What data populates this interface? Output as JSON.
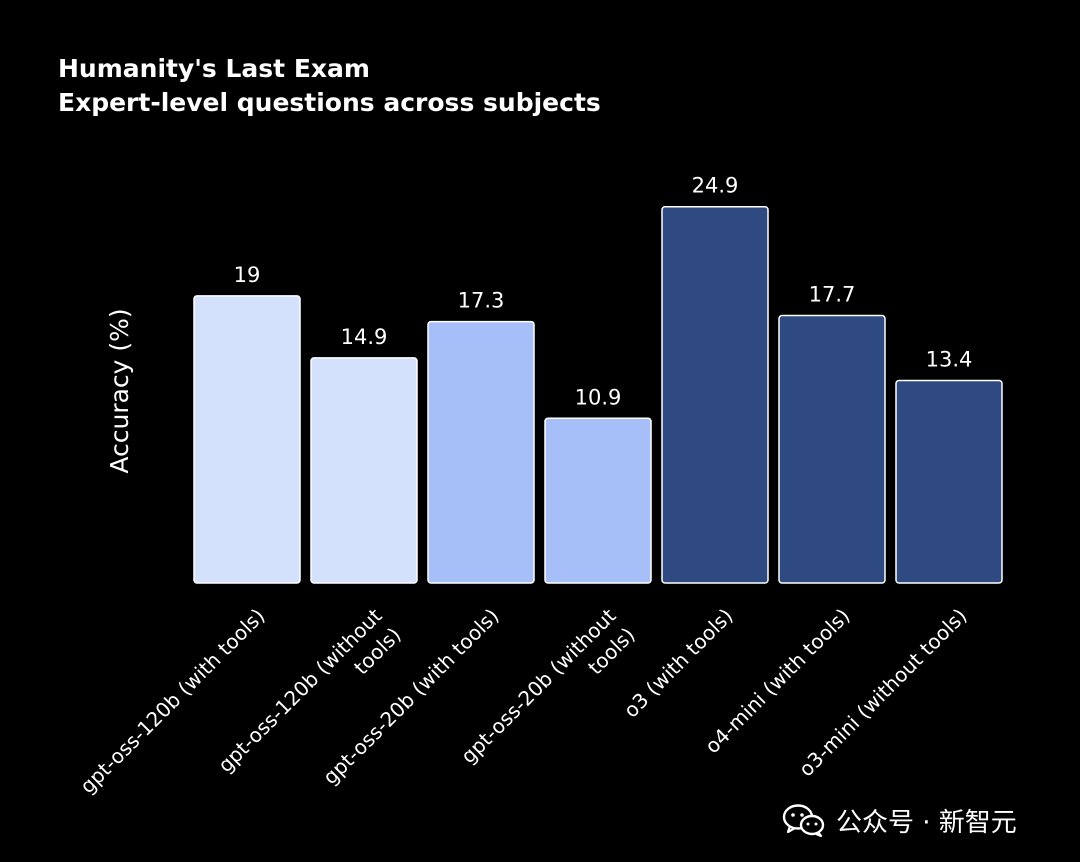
{
  "chart_data": {
    "type": "bar",
    "title": "Humanity's Last Exam",
    "subtitle": "Expert-level questions across subjects",
    "xlabel": "",
    "ylabel": "Accuracy (%)",
    "ylim": [
      0,
      27
    ],
    "grid": false,
    "categories": [
      "gpt-oss-120b (with tools)",
      "gpt-oss-120b (without tools)",
      "gpt-oss-20b (with tools)",
      "gpt-oss-20b (without tools)",
      "o3 (with tools)",
      "o4-mini (with tools)",
      "o3-mini (without tools)"
    ],
    "category_label_lines": [
      [
        "gpt-oss-120b (with tools)"
      ],
      [
        "gpt-oss-120b (without",
        "tools)"
      ],
      [
        "gpt-oss-20b (with tools)"
      ],
      [
        "gpt-oss-20b (without",
        "tools)"
      ],
      [
        "o3 (with tools)"
      ],
      [
        "o4-mini (with tools)"
      ],
      [
        "o3-mini (without tools)"
      ]
    ],
    "values": [
      19,
      14.9,
      17.3,
      10.9,
      24.9,
      17.7,
      13.4
    ],
    "value_labels": [
      "19",
      "14.9",
      "17.3",
      "10.9",
      "24.9",
      "17.7",
      "13.4"
    ],
    "bar_colors": [
      "#d3e1fc",
      "#d3e1fc",
      "#a6bff8",
      "#a6bff8",
      "#2e4a80",
      "#2e4a80",
      "#2e4a80"
    ]
  },
  "watermark": {
    "icon": "wechat-icon",
    "text": "公众号 · 新智元"
  },
  "colors": {
    "background": "#000000",
    "text": "#ffffff",
    "bar_border": "#ffffff"
  }
}
